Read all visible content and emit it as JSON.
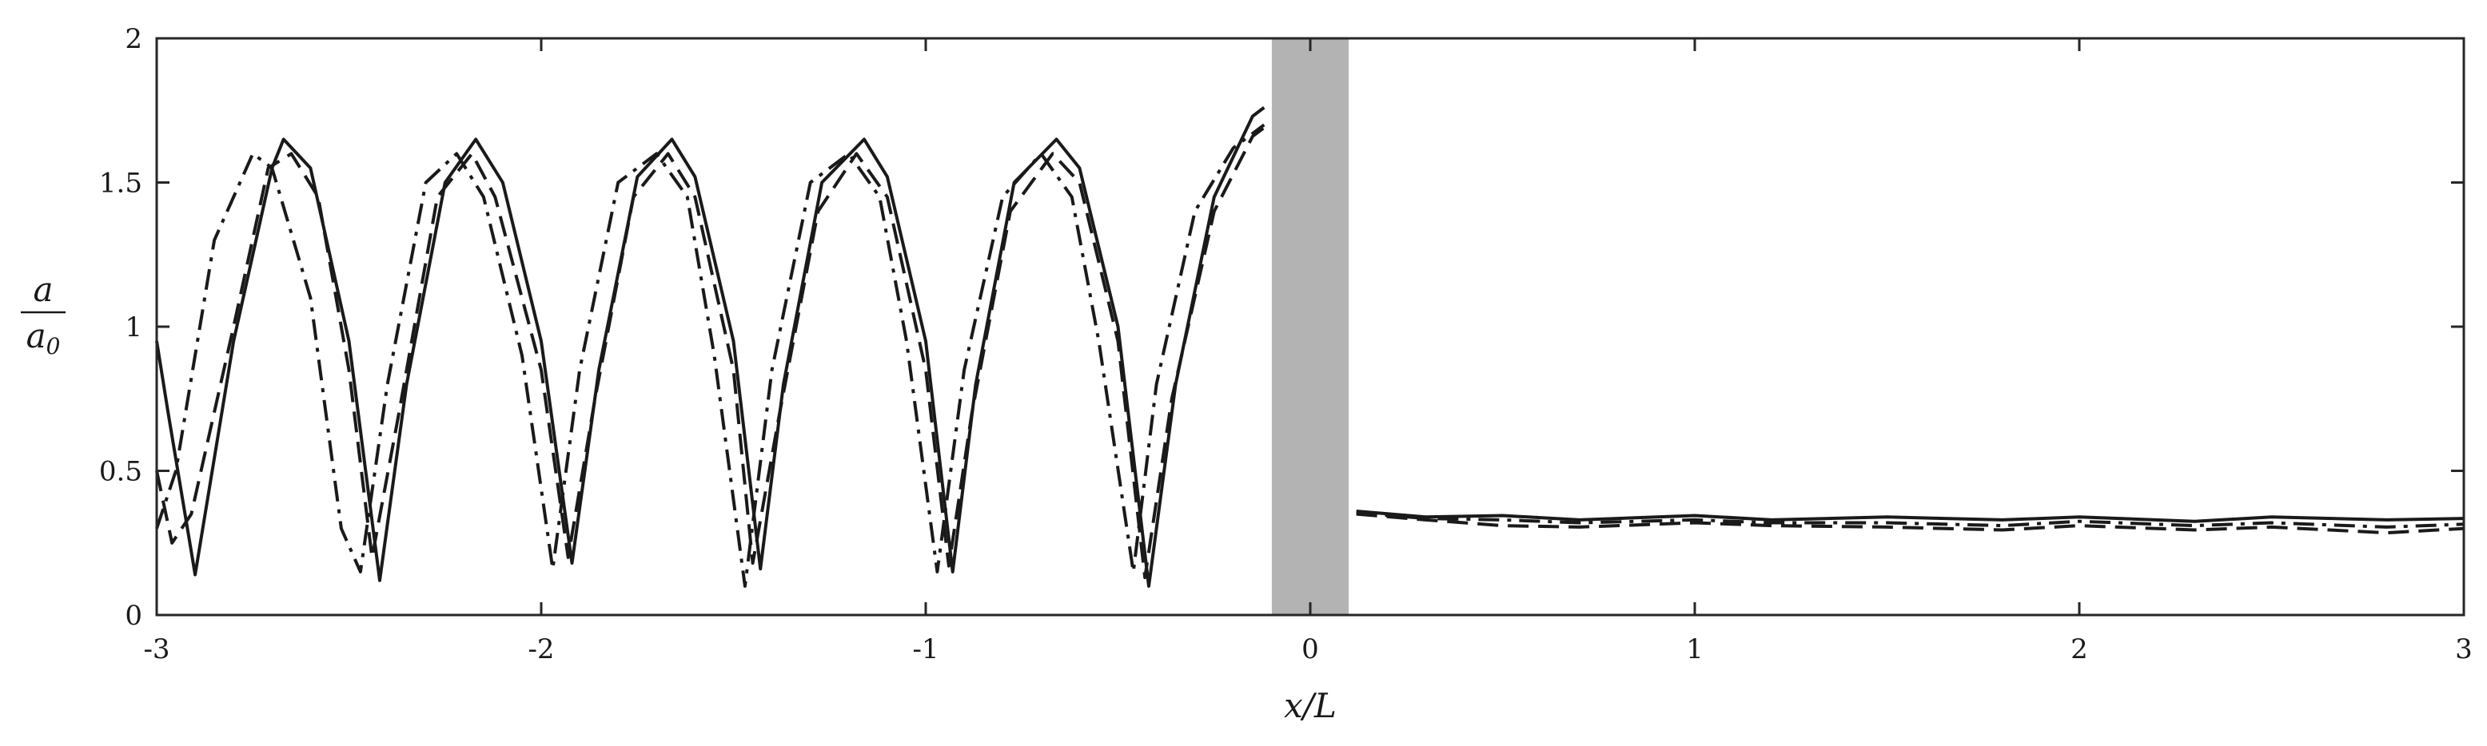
{
  "chart_data": {
    "type": "line",
    "title": "",
    "xlabel": "x/L",
    "ylabel": {
      "numerator": "a",
      "denominator": "a",
      "denominator_sub": "0"
    },
    "xlim": [
      -3,
      3
    ],
    "ylim": [
      0,
      2
    ],
    "xticks": [
      -3,
      -2,
      -1,
      0,
      1,
      2,
      3
    ],
    "yticks": [
      0,
      0.5,
      1,
      1.5,
      2
    ],
    "xtick_labels": [
      "-3",
      "-2",
      "-1",
      "0",
      "1",
      "2",
      "3"
    ],
    "ytick_labels": [
      "0",
      "0.5",
      "1",
      "1.5",
      "2"
    ],
    "grid": false,
    "legend": "none",
    "shaded_region": {
      "x": [
        -0.1,
        0.1
      ],
      "color": "#b3b3b3"
    },
    "line_color": "#1a1a1a",
    "series": [
      {
        "dash": "solid",
        "x": [
          -3.0,
          -2.97,
          -2.9,
          -2.8,
          -2.7,
          -2.67,
          -2.6,
          -2.5,
          -2.42,
          -2.35,
          -2.25,
          -2.17,
          -2.1,
          -2.0,
          -1.92,
          -1.85,
          -1.75,
          -1.66,
          -1.6,
          -1.5,
          -1.43,
          -1.37,
          -1.27,
          -1.16,
          -1.1,
          -1.0,
          -0.93,
          -0.87,
          -0.77,
          -0.66,
          -0.6,
          -0.5,
          -0.42,
          -0.35,
          -0.25,
          -0.15,
          -0.12
        ],
        "y": [
          0.95,
          0.7,
          0.14,
          0.95,
          1.55,
          1.65,
          1.55,
          0.95,
          0.12,
          0.8,
          1.5,
          1.65,
          1.5,
          0.95,
          0.18,
          0.85,
          1.52,
          1.65,
          1.52,
          0.95,
          0.16,
          0.8,
          1.5,
          1.65,
          1.52,
          0.95,
          0.15,
          0.8,
          1.5,
          1.65,
          1.55,
          1.0,
          0.1,
          0.8,
          1.45,
          1.73,
          1.76
        ]
      },
      {
        "dash": "dashed",
        "x": [
          -3.0,
          -2.96,
          -2.91,
          -2.8,
          -2.71,
          -2.65,
          -2.58,
          -2.5,
          -2.44,
          -2.37,
          -2.27,
          -2.18,
          -2.12,
          -2.0,
          -1.93,
          -1.86,
          -1.76,
          -1.67,
          -1.6,
          -1.5,
          -1.45,
          -1.38,
          -1.28,
          -1.18,
          -1.1,
          -1.0,
          -0.94,
          -0.88,
          -0.78,
          -0.67,
          -0.6,
          -0.5,
          -0.43,
          -0.36,
          -0.25,
          -0.15,
          -0.12
        ],
        "y": [
          0.5,
          0.25,
          0.35,
          1.0,
          1.55,
          1.6,
          1.45,
          0.85,
          0.2,
          0.7,
          1.45,
          1.6,
          1.45,
          0.85,
          0.2,
          0.75,
          1.45,
          1.6,
          1.45,
          0.85,
          0.18,
          0.7,
          1.4,
          1.6,
          1.45,
          0.85,
          0.17,
          0.7,
          1.4,
          1.6,
          1.5,
          0.95,
          0.13,
          0.75,
          1.4,
          1.66,
          1.69
        ]
      },
      {
        "dash": "dashdot",
        "x": [
          -3.0,
          -2.95,
          -2.85,
          -2.75,
          -2.7,
          -2.6,
          -2.52,
          -2.47,
          -2.4,
          -2.3,
          -2.22,
          -2.15,
          -2.05,
          -1.97,
          -1.9,
          -1.8,
          -1.7,
          -1.62,
          -1.55,
          -1.47,
          -1.4,
          -1.3,
          -1.2,
          -1.12,
          -1.05,
          -0.97,
          -0.9,
          -0.8,
          -0.7,
          -0.62,
          -0.55,
          -0.46,
          -0.4,
          -0.3,
          -0.2,
          -0.15,
          -0.12
        ],
        "y": [
          0.3,
          0.5,
          1.3,
          1.6,
          1.55,
          1.1,
          0.3,
          0.15,
          0.8,
          1.5,
          1.6,
          1.45,
          0.9,
          0.16,
          0.85,
          1.5,
          1.6,
          1.45,
          0.9,
          0.1,
          0.85,
          1.5,
          1.6,
          1.45,
          0.95,
          0.15,
          0.85,
          1.45,
          1.6,
          1.45,
          0.95,
          0.15,
          0.8,
          1.4,
          1.62,
          1.67,
          1.7
        ]
      },
      {
        "dash": "solid",
        "x": [
          0.12,
          0.3,
          0.5,
          0.7,
          1.0,
          1.2,
          1.5,
          1.8,
          2.0,
          2.3,
          2.5,
          2.8,
          3.0
        ],
        "y": [
          0.36,
          0.34,
          0.345,
          0.33,
          0.345,
          0.33,
          0.34,
          0.33,
          0.34,
          0.325,
          0.34,
          0.33,
          0.335
        ]
      },
      {
        "dash": "dashed",
        "x": [
          0.12,
          0.3,
          0.5,
          0.7,
          1.0,
          1.2,
          1.5,
          1.8,
          2.0,
          2.3,
          2.5,
          2.8,
          3.0
        ],
        "y": [
          0.35,
          0.33,
          0.31,
          0.305,
          0.32,
          0.31,
          0.305,
          0.295,
          0.31,
          0.295,
          0.305,
          0.285,
          0.3
        ]
      },
      {
        "dash": "dashdot",
        "x": [
          0.12,
          0.3,
          0.5,
          0.7,
          1.0,
          1.2,
          1.5,
          1.8,
          2.0,
          2.3,
          2.5,
          2.8,
          3.0
        ],
        "y": [
          0.355,
          0.335,
          0.33,
          0.32,
          0.33,
          0.32,
          0.32,
          0.31,
          0.325,
          0.31,
          0.32,
          0.305,
          0.315
        ]
      }
    ]
  }
}
